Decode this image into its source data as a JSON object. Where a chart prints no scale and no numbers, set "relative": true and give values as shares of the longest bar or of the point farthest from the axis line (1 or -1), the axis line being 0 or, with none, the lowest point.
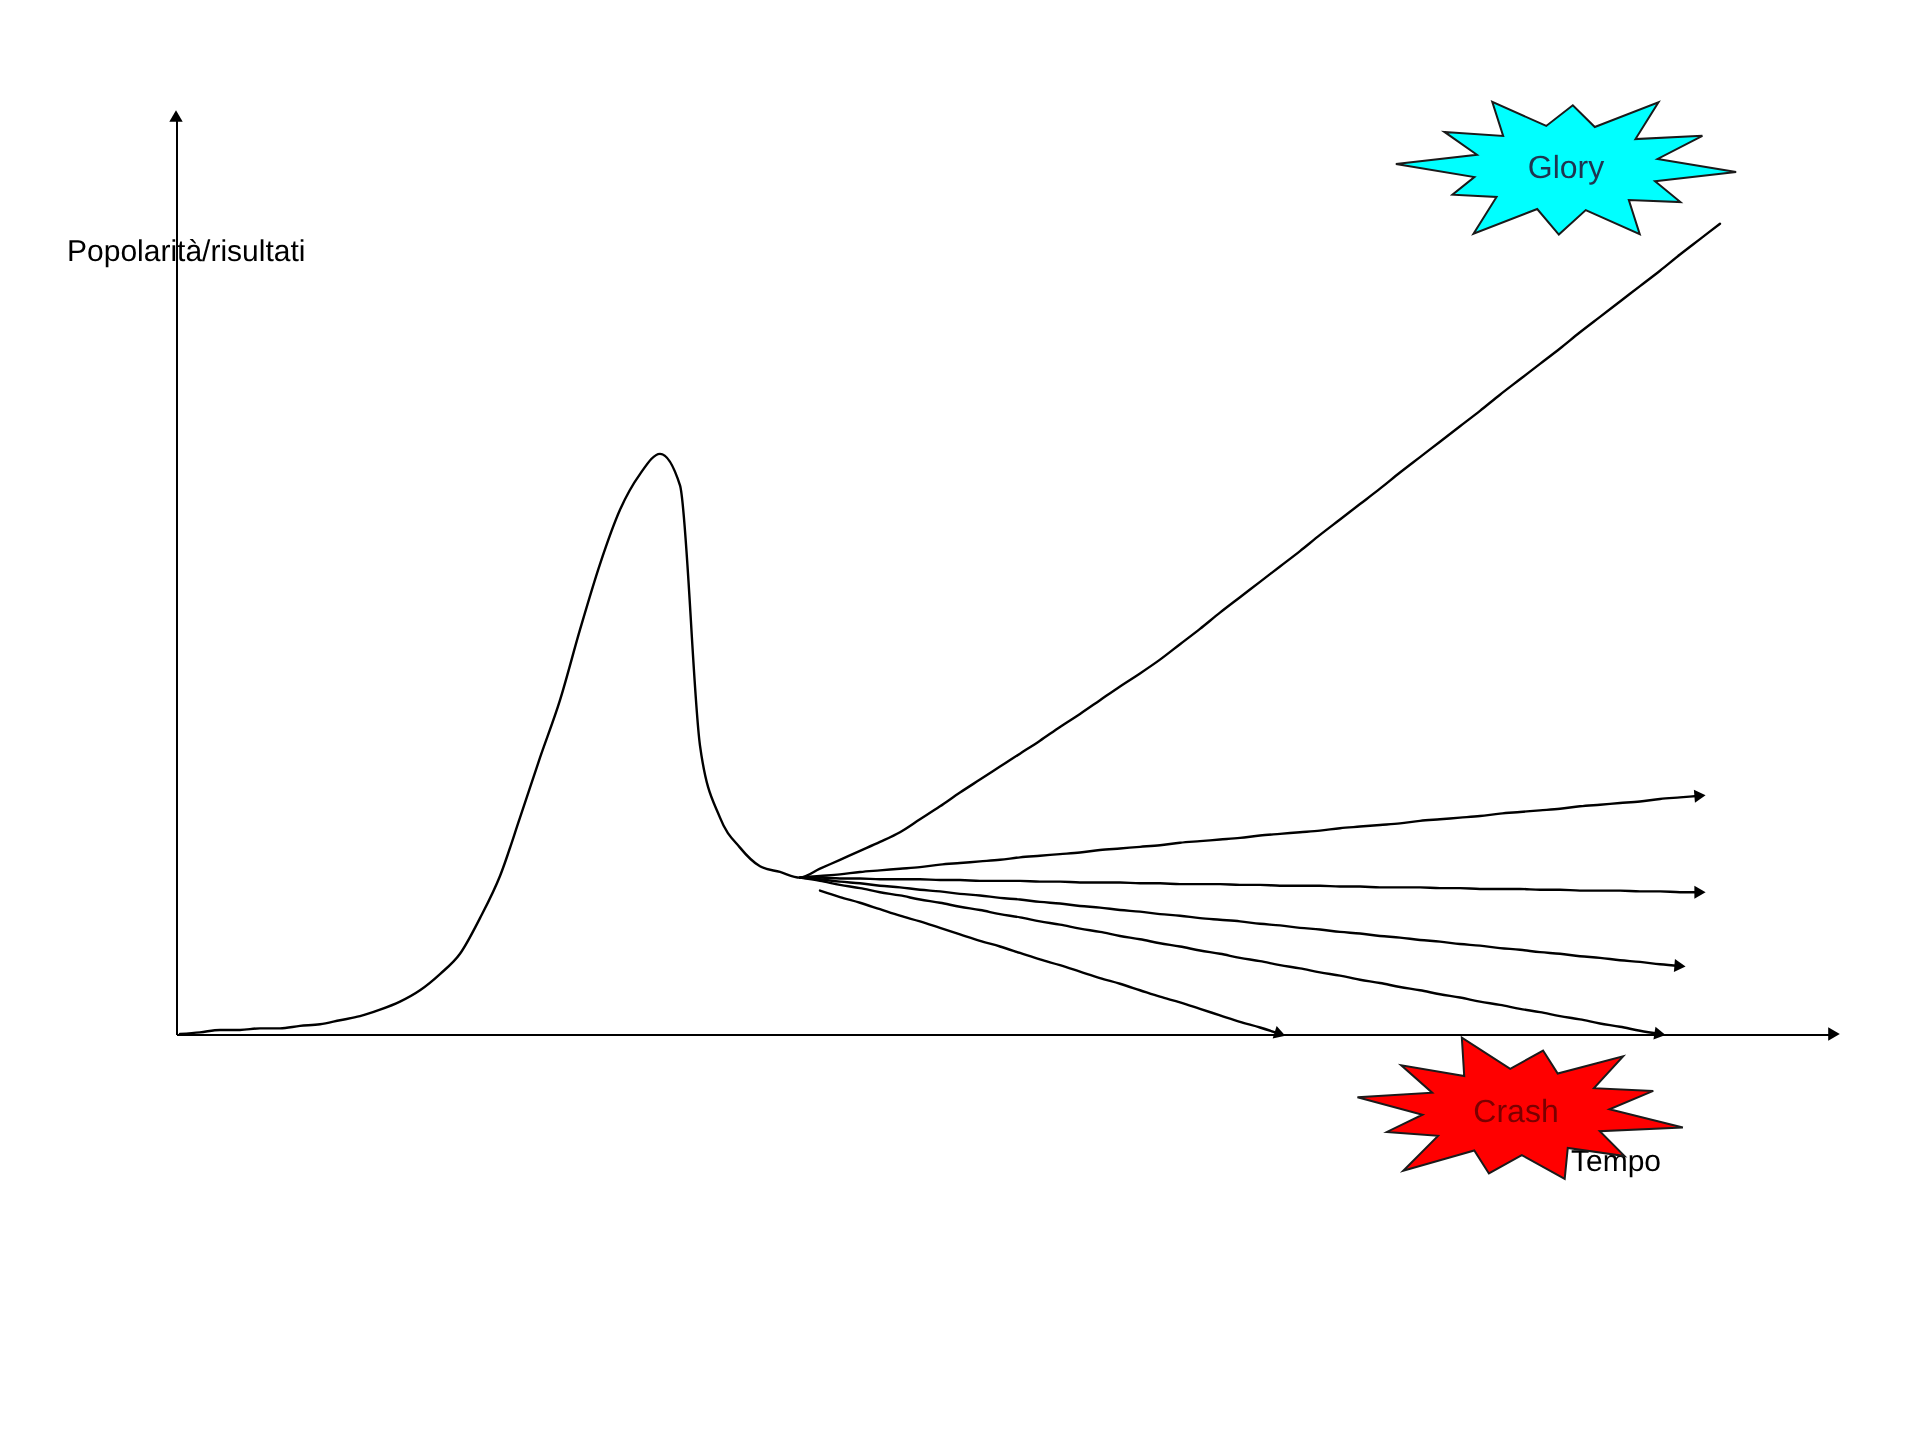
{
  "chart_data": {
    "type": "line",
    "relative": true,
    "xlabel": "Tempo",
    "ylabel": "Popolarità/risultati",
    "annotations": [
      "Glory",
      "Crash"
    ],
    "categories": [
      null,
      null,
      null,
      null,
      null,
      null,
      null,
      null,
      null,
      null,
      null,
      null,
      null,
      null,
      null,
      null,
      null,
      null,
      null,
      null,
      null,
      null,
      null,
      null,
      null,
      null,
      null,
      null,
      null,
      null,
      null,
      null,
      null,
      null,
      null,
      null,
      null,
      null,
      null,
      null,
      null,
      null,
      null,
      null,
      null,
      null,
      null,
      null,
      null,
      null,
      null,
      null,
      null,
      null,
      null,
      null,
      null,
      null,
      null,
      null,
      null,
      null,
      null,
      null,
      null,
      null,
      null,
      null,
      null,
      null,
      null,
      null,
      null,
      null,
      null,
      null,
      null,
      null
    ],
    "series": [
      {
        "color": "#000000",
        "values": [
          0,
          0.002,
          0.005,
          0.005,
          0.007,
          0.007,
          0.01,
          0.012,
          0.017,
          0.022,
          0.03,
          0.04,
          0.054,
          0.074,
          0.099,
          0.143,
          0.195,
          0.267,
          0.341,
          0.412,
          0.499,
          0.58,
          0.647,
          0.691,
          0.716,
          0.677,
          0.356,
          0.267,
          0.23,
          0.207,
          0.2,
          0.193,
          0.204,
          0.215,
          0.226,
          0.237,
          0.249,
          0.265,
          0.281,
          0.298,
          0.314,
          0.33,
          0.346,
          0.362,
          0.379,
          0.395,
          0.412,
          0.429,
          0.445,
          0.462,
          0.481,
          0.5,
          0.52,
          0.539,
          0.558,
          0.577,
          0.596,
          0.616,
          0.635,
          0.654,
          0.673,
          0.693,
          0.712,
          0.731,
          0.75,
          0.769,
          0.789,
          0.808,
          0.827,
          0.846,
          0.866,
          0.885,
          0.904,
          0.923,
          0.942,
          0.962,
          0.981,
          1.0
        ]
      },
      {
        "color": "#000000",
        "values": [
          null,
          null,
          null,
          null,
          null,
          null,
          null,
          null,
          null,
          null,
          null,
          null,
          null,
          null,
          null,
          null,
          null,
          null,
          null,
          null,
          null,
          null,
          null,
          null,
          null,
          null,
          null,
          null,
          null,
          null,
          null,
          0.193,
          0.195,
          0.197,
          0.2,
          0.202,
          0.204,
          0.206,
          0.209,
          0.211,
          0.213,
          0.215,
          0.218,
          0.22,
          0.222,
          0.224,
          0.227,
          0.229,
          0.231,
          0.233,
          0.236,
          0.238,
          0.24,
          0.242,
          0.245,
          0.247,
          0.249,
          0.251,
          0.254,
          0.256,
          0.258,
          0.26,
          0.263,
          0.265,
          0.267,
          0.269,
          0.272,
          0.274,
          0.276,
          0.278,
          0.281,
          0.283,
          0.285,
          0.287,
          0.29,
          0.292,
          0.294,
          null
        ]
      },
      {
        "color": "#000000",
        "values": [
          null,
          null,
          null,
          null,
          null,
          null,
          null,
          null,
          null,
          null,
          null,
          null,
          null,
          null,
          null,
          null,
          null,
          null,
          null,
          null,
          null,
          null,
          null,
          null,
          null,
          null,
          null,
          null,
          null,
          null,
          null,
          0.193,
          0.193,
          0.192,
          0.192,
          0.191,
          0.191,
          0.191,
          0.19,
          0.19,
          0.189,
          0.189,
          0.189,
          0.188,
          0.188,
          0.187,
          0.187,
          0.187,
          0.186,
          0.186,
          0.185,
          0.185,
          0.185,
          0.184,
          0.184,
          0.183,
          0.183,
          0.183,
          0.182,
          0.182,
          0.181,
          0.181,
          0.181,
          0.18,
          0.18,
          0.179,
          0.179,
          0.179,
          0.178,
          0.178,
          0.177,
          0.177,
          0.177,
          0.176,
          0.176,
          0.175,
          0.175,
          null
        ]
      },
      {
        "color": "#000000",
        "values": [
          null,
          null,
          null,
          null,
          null,
          null,
          null,
          null,
          null,
          null,
          null,
          null,
          null,
          null,
          null,
          null,
          null,
          null,
          null,
          null,
          null,
          null,
          null,
          null,
          null,
          null,
          null,
          null,
          null,
          null,
          null,
          0.193,
          0.191,
          0.188,
          0.186,
          0.183,
          0.181,
          0.178,
          0.176,
          0.173,
          0.171,
          0.168,
          0.166,
          0.163,
          0.161,
          0.158,
          0.156,
          0.153,
          0.151,
          0.148,
          0.146,
          0.143,
          0.141,
          0.139,
          0.136,
          0.134,
          0.131,
          0.129,
          0.126,
          0.124,
          0.121,
          0.119,
          0.116,
          0.114,
          0.111,
          0.109,
          0.106,
          0.104,
          0.101,
          0.099,
          0.096,
          0.094,
          0.091,
          0.089,
          0.086,
          0.084,
          null,
          null
        ]
      },
      {
        "color": "#000000",
        "values": [
          null,
          null,
          null,
          null,
          null,
          null,
          null,
          null,
          null,
          null,
          null,
          null,
          null,
          null,
          null,
          null,
          null,
          null,
          null,
          null,
          null,
          null,
          null,
          null,
          null,
          null,
          null,
          null,
          null,
          null,
          null,
          0.193,
          0.189,
          0.184,
          0.18,
          0.175,
          0.171,
          0.166,
          0.162,
          0.157,
          0.153,
          0.148,
          0.144,
          0.139,
          0.135,
          0.13,
          0.126,
          0.121,
          0.117,
          0.112,
          0.108,
          0.103,
          0.099,
          0.094,
          0.09,
          0.085,
          0.081,
          0.076,
          0.072,
          0.067,
          0.063,
          0.058,
          0.054,
          0.049,
          0.045,
          0.04,
          0.036,
          0.031,
          0.027,
          0.022,
          0.018,
          0.013,
          0.009,
          0.004,
          0,
          null,
          null,
          null
        ]
      },
      {
        "color": "#000000",
        "values": [
          null,
          null,
          null,
          null,
          null,
          null,
          null,
          null,
          null,
          null,
          null,
          null,
          null,
          null,
          null,
          null,
          null,
          null,
          null,
          null,
          null,
          null,
          null,
          null,
          null,
          null,
          null,
          null,
          null,
          null,
          null,
          null,
          0.177,
          0.169,
          0.162,
          0.154,
          0.146,
          0.139,
          0.131,
          0.123,
          0.115,
          0.108,
          0.1,
          0.092,
          0.085,
          0.077,
          0.069,
          0.062,
          0.054,
          0.046,
          0.039,
          0.031,
          0.023,
          0.015,
          0.008,
          0,
          null,
          null,
          null,
          null,
          null,
          null,
          null,
          null,
          null,
          null,
          null,
          null,
          null,
          null,
          null,
          null,
          null,
          null,
          null,
          null,
          null,
          null
        ]
      }
    ],
    "grid": false,
    "legend": false,
    "tick_labels": false
  }
}
